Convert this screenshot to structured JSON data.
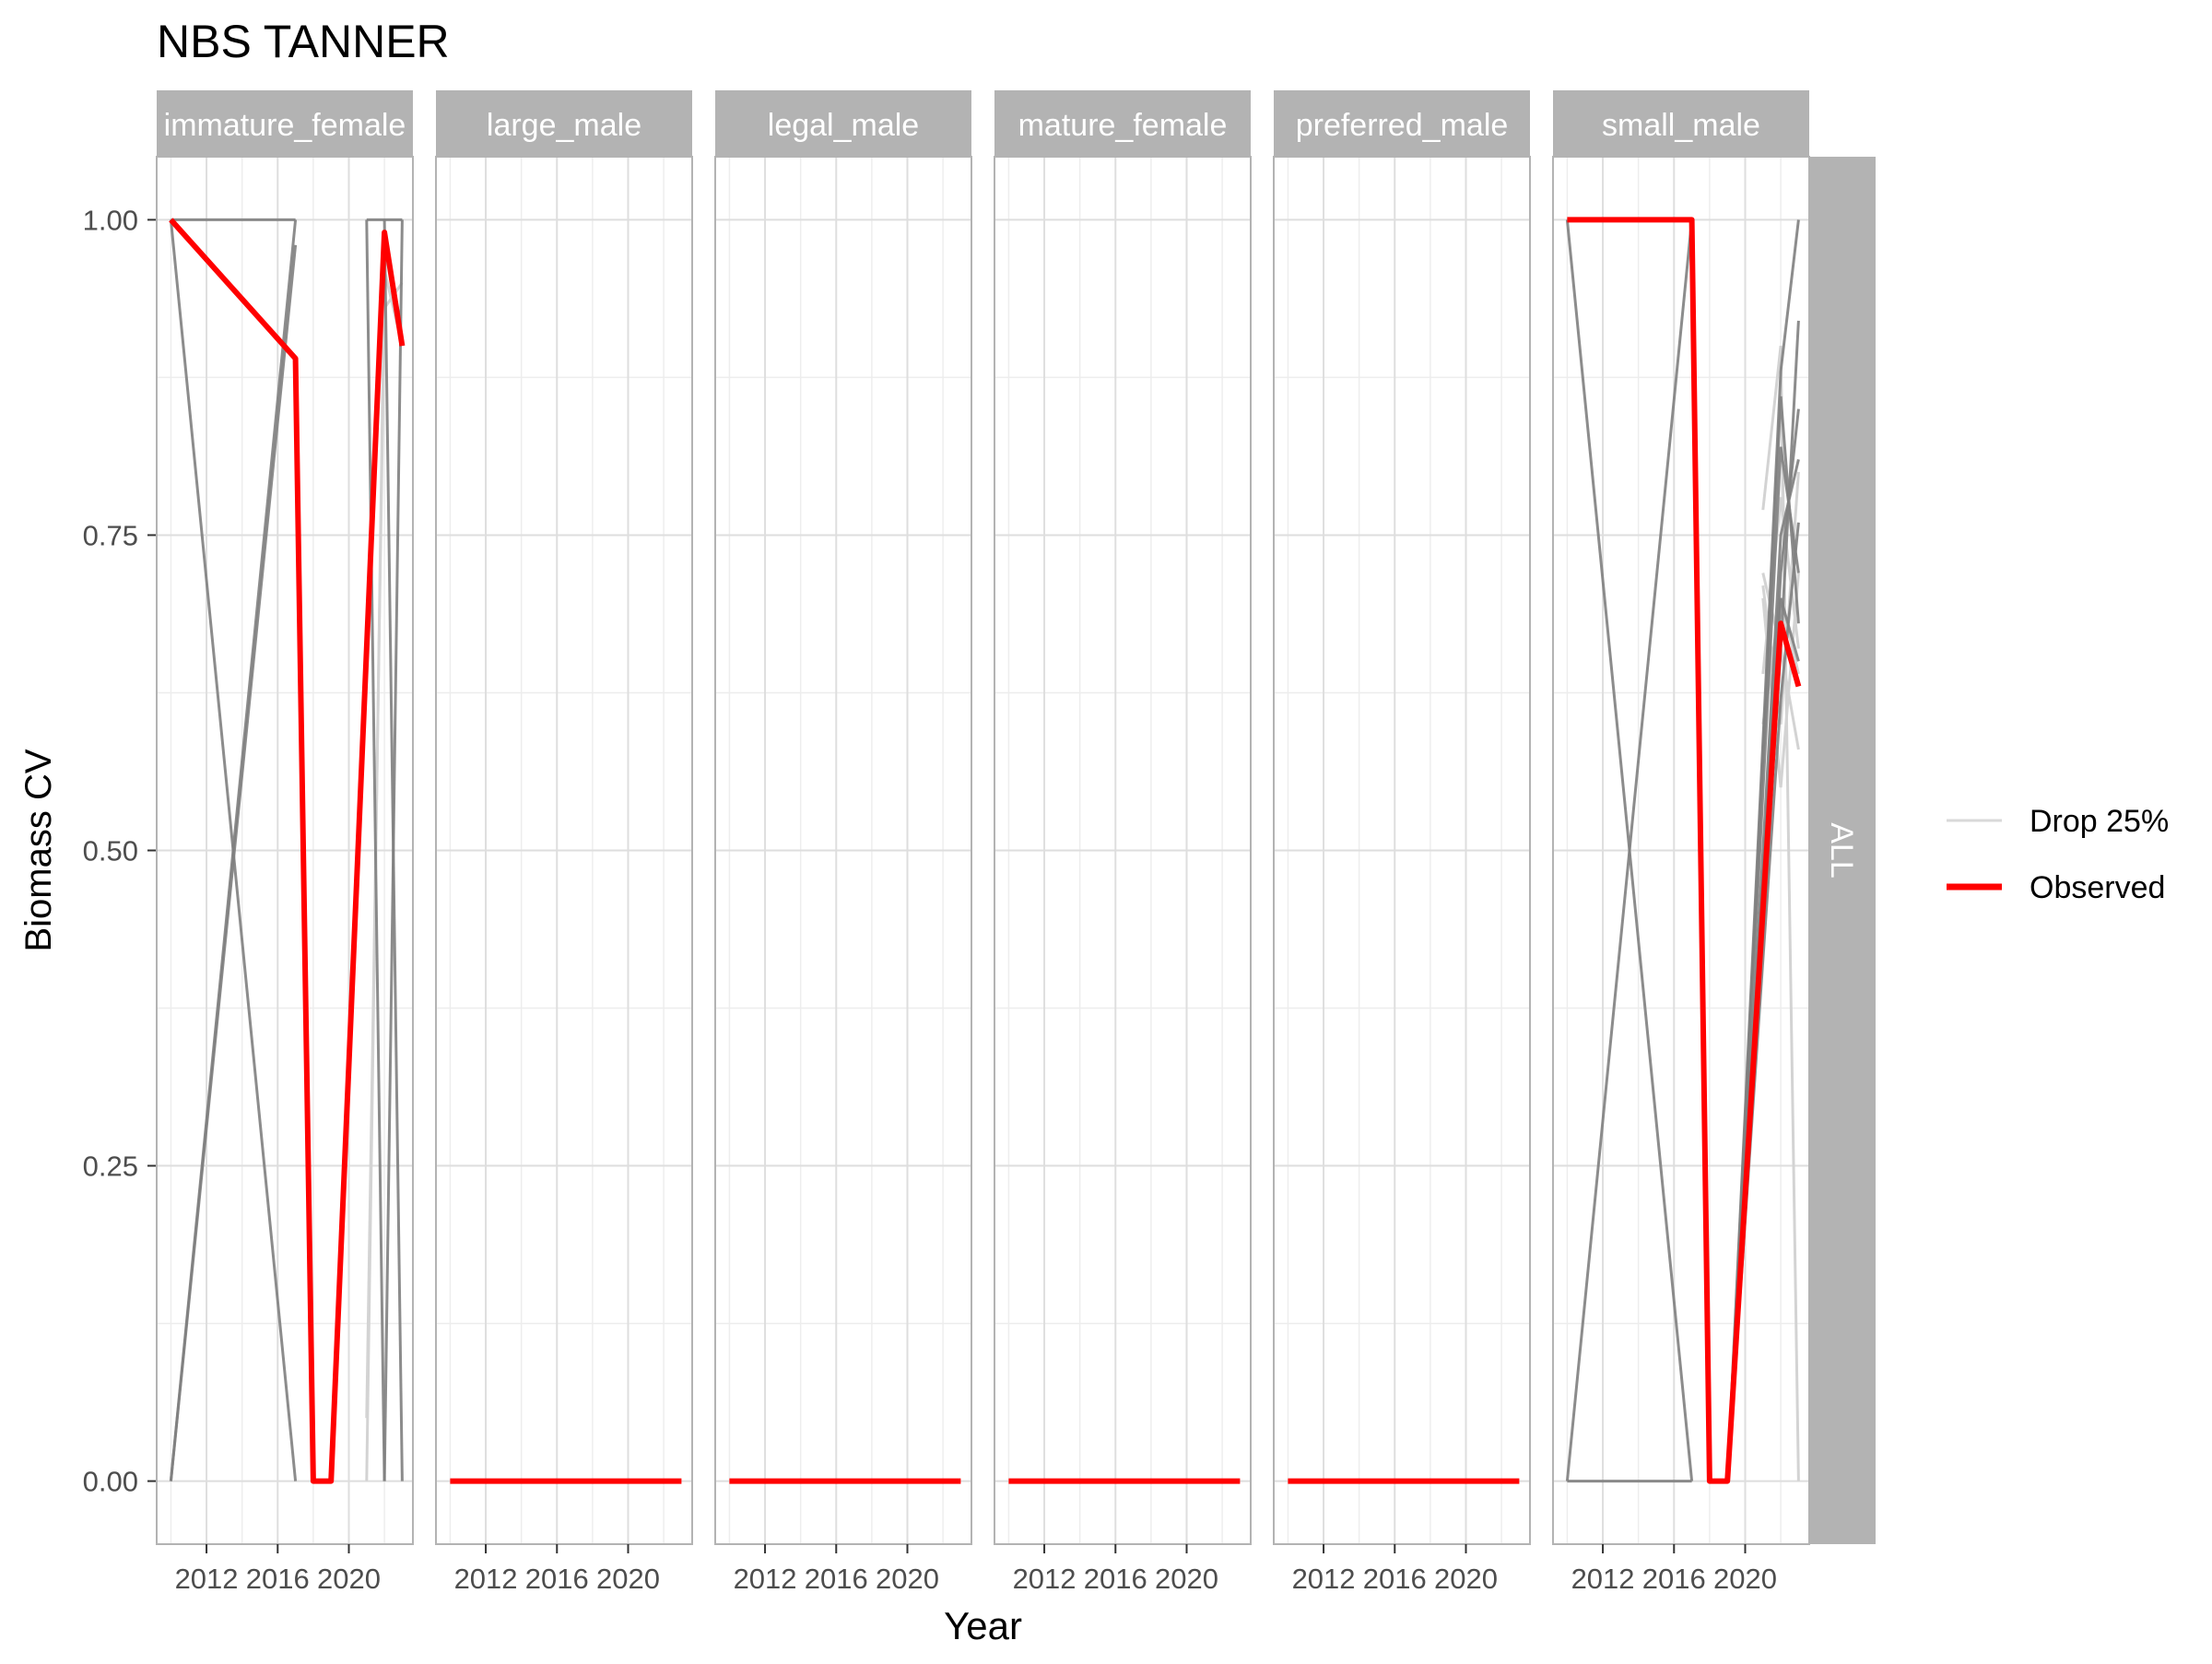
{
  "chart_data": {
    "type": "line",
    "title": "NBS TANNER",
    "xlabel": "Year",
    "ylabel": "Biomass CV",
    "xlim": [
      2009.2,
      2023.6
    ],
    "ylim": [
      -0.05,
      1.05
    ],
    "x_ticks": [
      2012,
      2016,
      2020
    ],
    "x_tick_labels": [
      "2012",
      "2016",
      "2020"
    ],
    "y_ticks": [
      0,
      0.25,
      0.5,
      0.75,
      1
    ],
    "y_tick_labels": [
      "0.00",
      "0.25",
      "0.50",
      "0.75",
      "1.00"
    ],
    "grid": true,
    "legend_position": "right",
    "row_strip": "ALL",
    "legend": [
      {
        "label": "Drop 25%",
        "color": "#d9d9d9"
      },
      {
        "label": "Observed",
        "color": "#ff0000"
      }
    ],
    "colors": {
      "observed": "#ff0000",
      "drop": "#808080",
      "drop_light": "#d3d3d3",
      "strip": "#b3b3b3"
    },
    "panels": [
      {
        "name": "immature_female",
        "observed": {
          "x": [
            2010,
            2017,
            2018,
            2019,
            2022,
            2023
          ],
          "y": [
            1.0,
            0.89,
            0.0,
            0.0,
            0.99,
            0.9
          ]
        },
        "replicates": [
          {
            "x": [
              2010,
              2017
            ],
            "y": [
              1.0,
              1.0
            ]
          },
          {
            "x": [
              2010,
              2017
            ],
            "y": [
              0.0,
              1.0
            ]
          },
          {
            "x": [
              2010,
              2017
            ],
            "y": [
              1.0,
              0.0
            ]
          },
          {
            "x": [
              2010,
              2017
            ],
            "y": [
              0.0,
              0.98
            ]
          },
          {
            "x": [
              2021,
              2023
            ],
            "y": [
              1.0,
              1.0
            ]
          },
          {
            "x": [
              2022,
              2023
            ],
            "y": [
              0.0,
              1.0
            ]
          },
          {
            "x": [
              2021,
              2022
            ],
            "y": [
              1.0,
              0.0
            ]
          },
          {
            "x": [
              2022,
              2023
            ],
            "y": [
              1.0,
              0.0
            ]
          }
        ],
        "replicates_light": [
          {
            "x": [
              2021,
              2022,
              2023
            ],
            "y": [
              0.0,
              0.96,
              0.9
            ]
          },
          {
            "x": [
              2021,
              2022,
              2023
            ],
            "y": [
              0.05,
              0.93,
              0.95
            ]
          }
        ]
      },
      {
        "name": "large_male",
        "observed": {
          "x": [
            2010,
            2023
          ],
          "y": [
            0.0,
            0.0
          ]
        },
        "replicates": [],
        "replicates_light": []
      },
      {
        "name": "legal_male",
        "observed": {
          "x": [
            2010,
            2023
          ],
          "y": [
            0.0,
            0.0
          ]
        },
        "replicates": [],
        "replicates_light": []
      },
      {
        "name": "mature_female",
        "observed": {
          "x": [
            2010,
            2023
          ],
          "y": [
            0.0,
            0.0
          ]
        },
        "replicates": [],
        "replicates_light": []
      },
      {
        "name": "preferred_male",
        "observed": {
          "x": [
            2010,
            2023
          ],
          "y": [
            0.0,
            0.0
          ]
        },
        "replicates": [],
        "replicates_light": []
      },
      {
        "name": "small_male",
        "observed": {
          "x": [
            2010,
            2017,
            2018,
            2019,
            2022,
            2023
          ],
          "y": [
            1.0,
            1.0,
            0.0,
            0.0,
            0.68,
            0.63
          ]
        },
        "replicates": [
          {
            "x": [
              2010,
              2017
            ],
            "y": [
              1.0,
              1.0
            ]
          },
          {
            "x": [
              2010,
              2017
            ],
            "y": [
              0.0,
              0.0
            ]
          },
          {
            "x": [
              2010,
              2017
            ],
            "y": [
              1.0,
              0.0
            ]
          },
          {
            "x": [
              2010,
              2017
            ],
            "y": [
              0.0,
              1.0
            ]
          },
          {
            "x": [
              2019,
              2022,
              2023
            ],
            "y": [
              0.0,
              0.88,
              1.0
            ]
          },
          {
            "x": [
              2019,
              2022,
              2023
            ],
            "y": [
              0.0,
              0.82,
              0.72
            ]
          },
          {
            "x": [
              2019,
              2022,
              2023
            ],
            "y": [
              0.0,
              0.75,
              0.81
            ]
          },
          {
            "x": [
              2019,
              2022,
              2023
            ],
            "y": [
              0.0,
              0.7,
              0.65
            ]
          },
          {
            "x": [
              2019,
              2022,
              2023
            ],
            "y": [
              0.0,
              0.66,
              0.92
            ]
          },
          {
            "x": [
              2019,
              2022,
              2023
            ],
            "y": [
              0.0,
              0.62,
              0.76
            ]
          },
          {
            "x": [
              2019,
              2022,
              2023
            ],
            "y": [
              0.0,
              0.86,
              0.68
            ]
          },
          {
            "x": [
              2019,
              2022,
              2023
            ],
            "y": [
              0.0,
              0.72,
              0.85
            ]
          }
        ],
        "replicates_light": [
          {
            "x": [
              2021,
              2022,
              2023
            ],
            "y": [
              0.77,
              0.9,
              0.0
            ]
          },
          {
            "x": [
              2021,
              2022,
              2023
            ],
            "y": [
              0.71,
              0.6,
              0.8
            ]
          },
          {
            "x": [
              2021,
              2022,
              2023
            ],
            "y": [
              0.6,
              0.7,
              0.64
            ]
          },
          {
            "x": [
              2021,
              2022,
              2023
            ],
            "y": [
              0.7,
              0.55,
              0.72
            ]
          },
          {
            "x": [
              2021,
              2022,
              2023
            ],
            "y": [
              0.64,
              0.78,
              0.66
            ]
          },
          {
            "x": [
              2021,
              2022,
              2023
            ],
            "y": [
              0.72,
              0.66,
              0.58
            ]
          }
        ]
      }
    ]
  }
}
